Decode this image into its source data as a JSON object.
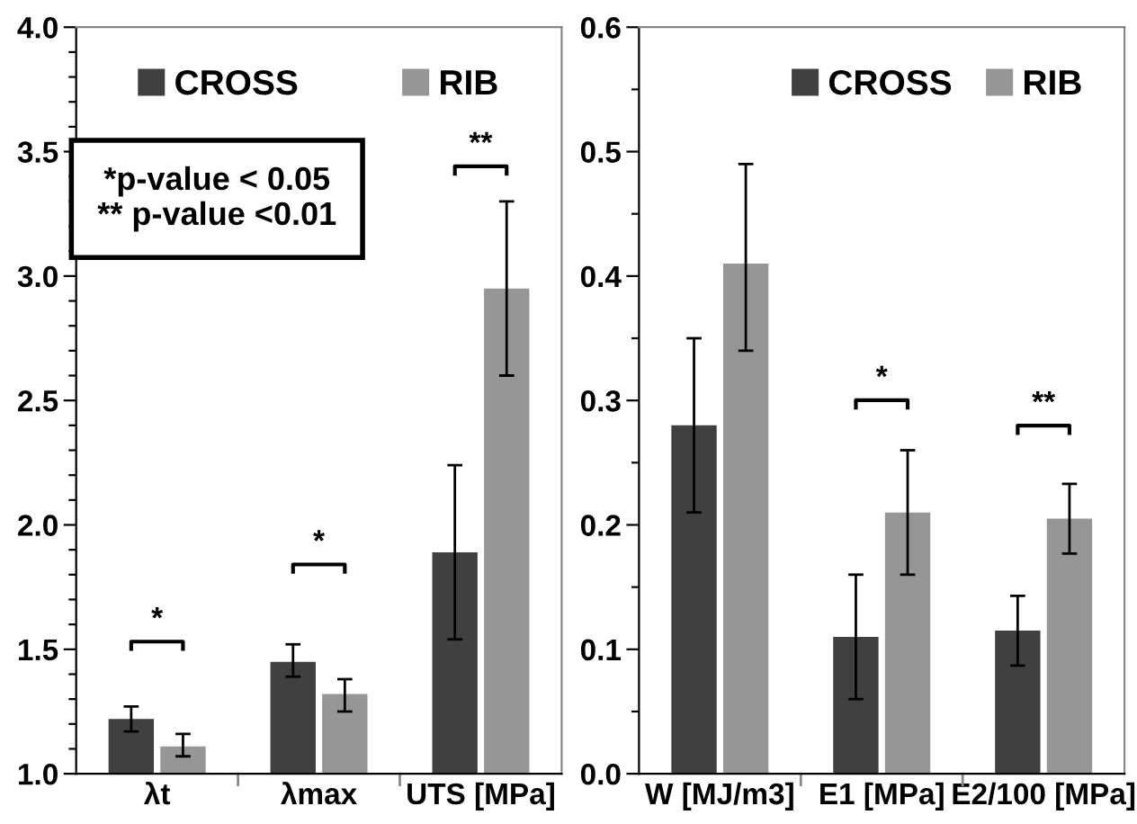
{
  "chart_data": [
    {
      "type": "bar",
      "categories": [
        "λt",
        "λmax",
        "UTS [MPa]"
      ],
      "series": [
        {
          "name": "CROSS",
          "color": "#404040",
          "values": [
            1.22,
            1.45,
            1.89
          ],
          "errors": [
            [
              1.17,
              1.27
            ],
            [
              1.39,
              1.52
            ],
            [
              1.54,
              2.24
            ]
          ]
        },
        {
          "name": "RIB",
          "color": "#969696",
          "values": [
            1.11,
            1.32,
            2.95
          ],
          "errors": [
            [
              1.07,
              1.16
            ],
            [
              1.25,
              1.38
            ],
            [
              2.6,
              3.3
            ]
          ]
        }
      ],
      "ylim": [
        1.0,
        4.0
      ],
      "yticks": [
        {
          "value": 1.0,
          "label": "1.0"
        },
        {
          "value": 1.1,
          "label": null
        },
        {
          "value": 1.2,
          "label": null
        },
        {
          "value": 1.3,
          "label": null
        },
        {
          "value": 1.4,
          "label": null
        },
        {
          "value": 1.5,
          "label": "1.5"
        },
        {
          "value": 1.6,
          "label": null
        },
        {
          "value": 1.7,
          "label": null
        },
        {
          "value": 1.8,
          "label": null
        },
        {
          "value": 1.9,
          "label": null
        },
        {
          "value": 2.0,
          "label": "2.0"
        },
        {
          "value": 2.1,
          "label": null
        },
        {
          "value": 2.2,
          "label": null
        },
        {
          "value": 2.3,
          "label": null
        },
        {
          "value": 2.4,
          "label": null
        },
        {
          "value": 2.5,
          "label": "2.5"
        },
        {
          "value": 2.6,
          "label": null
        },
        {
          "value": 2.7,
          "label": null
        },
        {
          "value": 2.8,
          "label": null
        },
        {
          "value": 2.9,
          "label": null
        },
        {
          "value": 3.0,
          "label": "3.0"
        },
        {
          "value": 3.1,
          "label": null
        },
        {
          "value": 3.2,
          "label": null
        },
        {
          "value": 3.3,
          "label": null
        },
        {
          "value": 3.4,
          "label": null
        },
        {
          "value": 3.5,
          "label": "3.5"
        },
        {
          "value": 3.6,
          "label": null
        },
        {
          "value": 3.7,
          "label": null
        },
        {
          "value": 3.8,
          "label": null
        },
        {
          "value": 3.9,
          "label": null
        },
        {
          "value": 4.0,
          "label": "4.0"
        }
      ],
      "annotations": [
        "*",
        "*",
        "**",
        "*p-value < 0.05\n** p-value <0.01"
      ],
      "legend": "top",
      "grid": false
    },
    {
      "type": "bar",
      "categories": [
        "W [MJ/m3]",
        "E1 [MPa]",
        "E2/100 [MPa]"
      ],
      "series": [
        {
          "name": "CROSS",
          "color": "#404040",
          "values": [
            0.28,
            0.11,
            0.115
          ],
          "errors": [
            [
              0.21,
              0.35
            ],
            [
              0.06,
              0.16
            ],
            [
              0.087,
              0.143
            ]
          ]
        },
        {
          "name": "RIB",
          "color": "#969696",
          "values": [
            0.41,
            0.21,
            0.205
          ],
          "errors": [
            [
              0.34,
              0.49
            ],
            [
              0.16,
              0.26
            ],
            [
              0.177,
              0.233
            ]
          ]
        }
      ],
      "ylim": [
        0.0,
        0.6
      ],
      "yticks": [
        {
          "value": 0.0,
          "label": "0.0"
        },
        {
          "value": 0.05,
          "label": null
        },
        {
          "value": 0.1,
          "label": "0.1"
        },
        {
          "value": 0.15,
          "label": null
        },
        {
          "value": 0.2,
          "label": "0.2"
        },
        {
          "value": 0.25,
          "label": null
        },
        {
          "value": 0.3,
          "label": "0.3"
        },
        {
          "value": 0.35,
          "label": null
        },
        {
          "value": 0.4,
          "label": "0.4"
        },
        {
          "value": 0.45,
          "label": null
        },
        {
          "value": 0.5,
          "label": "0.5"
        },
        {
          "value": 0.55,
          "label": null
        },
        {
          "value": 0.6,
          "label": "0.6"
        }
      ],
      "annotations": [
        "*",
        "**"
      ],
      "legend": "top right",
      "grid": false
    }
  ]
}
